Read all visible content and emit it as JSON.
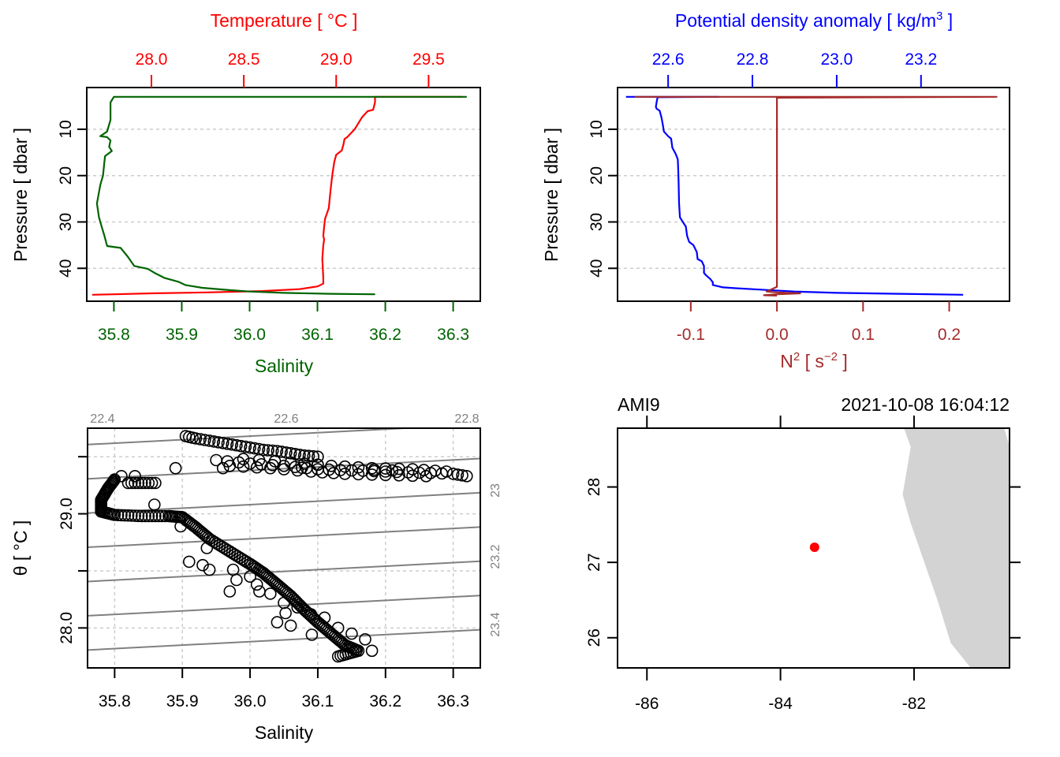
{
  "chart_data": [
    {
      "type": "line",
      "panel": "top-left",
      "title": "",
      "top_axis_label": "Temperature [ °C ]",
      "xlabel": "Salinity",
      "ylabel": "Pressure [ dbar ]",
      "colors": {
        "temperature": "#ff0000",
        "salinity": "#006400",
        "grid": "#cccccc"
      },
      "salinity_ticks": [
        "35.8",
        "35.9",
        "36.0",
        "36.1",
        "36.2",
        "36.3"
      ],
      "salinity_tick_values": [
        35.8,
        35.9,
        36.0,
        36.1,
        36.2,
        36.3
      ],
      "salinity_lim": [
        35.76,
        36.34
      ],
      "temperature_ticks": [
        "28.0",
        "28.5",
        "29.0",
        "29.5"
      ],
      "temperature_tick_values": [
        28.0,
        28.5,
        29.0,
        29.5
      ],
      "temperature_lim": [
        27.65,
        29.78
      ],
      "pressure_ticks": [
        "10",
        "20",
        "30",
        "40"
      ],
      "pressure_tick_values": [
        10,
        20,
        30,
        40
      ],
      "pressure_lim": [
        47.1,
        1.0
      ],
      "grid": true,
      "series": [
        {
          "name": "Salinity",
          "axis": "bottom",
          "points": [
            [
              36.32,
              3.0
            ],
            [
              35.8,
              3.0
            ],
            [
              35.795,
              4.2
            ],
            [
              35.795,
              8.0
            ],
            [
              35.79,
              10.5
            ],
            [
              35.78,
              11.5
            ],
            [
              35.79,
              11.7
            ],
            [
              35.795,
              12.4
            ],
            [
              35.793,
              13.8
            ],
            [
              35.797,
              14.7
            ],
            [
              35.787,
              15.8
            ],
            [
              35.786,
              17.0
            ],
            [
              35.784,
              20.0
            ],
            [
              35.78,
              22.0
            ],
            [
              35.775,
              26.0
            ],
            [
              35.778,
              29.0
            ],
            [
              35.782,
              31.0
            ],
            [
              35.786,
              33.0
            ],
            [
              35.79,
              35.2
            ],
            [
              35.81,
              35.6
            ],
            [
              35.82,
              37.4
            ],
            [
              35.83,
              39.5
            ],
            [
              35.85,
              40.1
            ],
            [
              35.86,
              41.0
            ],
            [
              35.875,
              42.1
            ],
            [
              35.895,
              42.9
            ],
            [
              35.905,
              43.6
            ],
            [
              35.93,
              44.2
            ],
            [
              35.97,
              44.7
            ],
            [
              36.0,
              45.0
            ],
            [
              36.05,
              45.3
            ],
            [
              36.12,
              45.5
            ],
            [
              36.185,
              45.6
            ]
          ]
        },
        {
          "name": "Temperature",
          "axis": "top",
          "points": [
            [
              29.68,
              3.0
            ],
            [
              29.21,
              3.0
            ],
            [
              29.21,
              4.2
            ],
            [
              29.2,
              5.8
            ],
            [
              29.17,
              6.1
            ],
            [
              29.14,
              7.4
            ],
            [
              29.1,
              10.0
            ],
            [
              29.06,
              11.7
            ],
            [
              29.045,
              12.1
            ],
            [
              29.04,
              13.2
            ],
            [
              29.03,
              14.6
            ],
            [
              29.0,
              15.5
            ],
            [
              28.99,
              17.0
            ],
            [
              28.98,
              19.5
            ],
            [
              28.97,
              23.0
            ],
            [
              28.96,
              27.0
            ],
            [
              28.94,
              29.3
            ],
            [
              28.935,
              31.0
            ],
            [
              28.93,
              33.0
            ],
            [
              28.935,
              33.8
            ],
            [
              28.93,
              35.0
            ],
            [
              28.925,
              38.0
            ],
            [
              28.93,
              42.0
            ],
            [
              28.93,
              43.3
            ],
            [
              28.9,
              43.9
            ],
            [
              28.8,
              44.5
            ],
            [
              28.6,
              44.9
            ],
            [
              28.3,
              45.2
            ],
            [
              28.0,
              45.4
            ],
            [
              27.8,
              45.6
            ],
            [
              27.68,
              45.7
            ]
          ]
        }
      ]
    },
    {
      "type": "line",
      "panel": "top-right",
      "top_axis_label": "Potential density anomaly [ kg/m³ ]",
      "top_axis_label_main": "Potential density anomaly [ kg/m",
      "top_axis_label_sup": "3",
      "top_axis_label_end": " ]",
      "xlabel": "N² [ s⁻² ]",
      "xlabel_main": "N",
      "xlabel_sup1": "2",
      "xlabel_mid": " [ s",
      "xlabel_sup2": "−2",
      "xlabel_end": " ]",
      "ylabel": "Pressure [ dbar ]",
      "colors": {
        "density": "#0000ff",
        "n2": "#a52a2a",
        "grid": "#cccccc"
      },
      "density_ticks": [
        "22.6",
        "22.8",
        "23.0",
        "23.2"
      ],
      "density_tick_values": [
        22.6,
        22.8,
        23.0,
        23.2
      ],
      "density_lim": [
        22.48,
        23.41
      ],
      "n2_ticks": [
        "-0.1",
        "0.0",
        "0.1",
        "0.2"
      ],
      "n2_tick_values": [
        -0.1,
        0.0,
        0.1,
        0.2
      ],
      "n2_lim": [
        -0.185,
        0.27
      ],
      "pressure_ticks": [
        "10",
        "20",
        "30",
        "40"
      ],
      "pressure_tick_values": [
        10,
        20,
        30,
        40
      ],
      "pressure_lim": [
        47.1,
        1.0
      ],
      "grid": true,
      "series": [
        {
          "name": "Potential density anomaly",
          "axis": "top",
          "points": [
            [
              22.5,
              3.0
            ],
            [
              22.72,
              3.0
            ],
            [
              22.575,
              3.1
            ],
            [
              22.573,
              4.0
            ],
            [
              22.571,
              5.2
            ],
            [
              22.573,
              5.6
            ],
            [
              22.58,
              6.0
            ],
            [
              22.584,
              7.4
            ],
            [
              22.587,
              8.8
            ],
            [
              22.59,
              10.5
            ],
            [
              22.6,
              11.5
            ],
            [
              22.607,
              12.0
            ],
            [
              22.61,
              14.0
            ],
            [
              22.618,
              15.3
            ],
            [
              22.623,
              16.5
            ],
            [
              22.624,
              19.0
            ],
            [
              22.625,
              22.0
            ],
            [
              22.626,
              26.0
            ],
            [
              22.628,
              29.0
            ],
            [
              22.635,
              30.0
            ],
            [
              22.642,
              31.0
            ],
            [
              22.645,
              33.0
            ],
            [
              22.65,
              34.3
            ],
            [
              22.66,
              35.0
            ],
            [
              22.668,
              36.5
            ],
            [
              22.67,
              38.0
            ],
            [
              22.68,
              38.5
            ],
            [
              22.685,
              39.5
            ],
            [
              22.685,
              41.0
            ],
            [
              22.69,
              41.5
            ],
            [
              22.7,
              42.3
            ],
            [
              22.706,
              43.0
            ],
            [
              22.706,
              43.6
            ],
            [
              22.73,
              44.1
            ],
            [
              22.76,
              44.3
            ],
            [
              22.82,
              44.6
            ],
            [
              22.9,
              45.0
            ],
            [
              23.0,
              45.3
            ],
            [
              23.15,
              45.5
            ],
            [
              23.3,
              45.7
            ]
          ]
        },
        {
          "name": "N²",
          "axis": "bottom",
          "points": [
            [
              -0.165,
              3.0
            ],
            [
              0.255,
              3.0
            ],
            [
              0.0,
              3.2
            ],
            [
              0.0,
              44.0
            ],
            [
              -0.012,
              45.0
            ],
            [
              0.0,
              45.2
            ],
            [
              0.027,
              45.4
            ],
            [
              0.0,
              45.6
            ],
            [
              -0.015,
              45.8
            ],
            [
              0.0,
              45.9
            ]
          ]
        }
      ]
    },
    {
      "type": "scatter",
      "panel": "bottom-left",
      "xlabel": "Salinity",
      "ylabel": "θ [ °C ]",
      "x_ticks": [
        "35.8",
        "35.9",
        "36.0",
        "36.1",
        "36.2",
        "36.3"
      ],
      "x_tick_values": [
        35.8,
        35.9,
        36.0,
        36.1,
        36.2,
        36.3
      ],
      "xlim": [
        35.76,
        36.34
      ],
      "y_ticks": [
        "28.0",
        "29.0"
      ],
      "y_tick_values": [
        28.0,
        29.0
      ],
      "y_minor_ticks": [
        28.5,
        29.5
      ],
      "ylim": [
        27.65,
        29.75
      ],
      "grid": true,
      "isopycnal_color": "#808080",
      "isopycnal_top_labels": [
        "22.4",
        "22.6",
        "22.8"
      ],
      "isopycnal_right_labels": [
        "23",
        "23.2",
        "23.4"
      ],
      "isopycnals": [
        22.4,
        22.6,
        22.8,
        23.0,
        23.2,
        23.4,
        23.6
      ],
      "isopycnal_slope_degC_per_psu": 0.306,
      "isopycnal_anchor": {
        "sigma": 22.6,
        "S": 36.0,
        "theta": 29.38
      },
      "sigma_step_degC": 0.3,
      "point_groups": [
        {
          "name": "surface-arm",
          "points": [
            [
              35.905,
              29.68
            ],
            [
              35.92,
              29.66
            ],
            [
              35.94,
              29.64
            ],
            [
              35.96,
              29.62
            ],
            [
              35.98,
              29.6
            ],
            [
              36.0,
              29.58
            ],
            [
              36.02,
              29.56
            ],
            [
              36.04,
              29.55
            ],
            [
              36.06,
              29.53
            ],
            [
              36.08,
              29.51
            ],
            [
              36.1,
              29.5
            ]
          ]
        },
        {
          "name": "upper-dense",
          "points": [
            [
              35.95,
              29.47
            ],
            [
              36.0,
              29.44
            ],
            [
              36.05,
              29.42
            ],
            [
              36.1,
              29.39
            ],
            [
              36.15,
              29.38
            ],
            [
              36.2,
              29.37
            ],
            [
              36.25,
              29.36
            ],
            [
              36.3,
              29.35
            ],
            [
              36.32,
              29.33
            ],
            [
              35.99,
              29.48
            ],
            [
              36.06,
              29.45
            ],
            [
              36.12,
              29.42
            ],
            [
              36.18,
              29.4
            ],
            [
              36.24,
              29.39
            ],
            [
              36.29,
              29.37
            ],
            [
              35.97,
              29.42
            ],
            [
              36.03,
              29.4
            ],
            [
              36.09,
              29.37
            ],
            [
              36.14,
              29.35
            ],
            [
              36.2,
              29.34
            ],
            [
              36.26,
              29.33
            ]
          ]
        },
        {
          "name": "outliers",
          "points": [
            [
              35.89,
              29.4
            ],
            [
              35.96,
              29.4
            ],
            [
              35.83,
              29.33
            ],
            [
              35.81,
              29.33
            ]
          ]
        },
        {
          "name": "loop",
          "points": [
            [
              35.8,
              29.3
            ],
            [
              35.79,
              29.22
            ],
            [
              35.78,
              29.12
            ],
            [
              35.78,
              29.02
            ],
            [
              35.8,
              28.99
            ],
            [
              35.84,
              28.98
            ],
            [
              35.88,
              28.98
            ],
            [
              35.9,
              28.97
            ],
            [
              35.92,
              28.88
            ],
            [
              35.94,
              28.78
            ],
            [
              35.97,
              28.67
            ],
            [
              36.0,
              28.56
            ],
            [
              36.02,
              28.48
            ],
            [
              36.04,
              28.38
            ],
            [
              36.06,
              28.28
            ],
            [
              36.08,
              28.16
            ],
            [
              36.1,
              28.05
            ],
            [
              36.12,
              27.95
            ],
            [
              36.14,
              27.85
            ],
            [
              36.16,
              27.8
            ],
            [
              36.13,
              27.75
            ],
            [
              35.82,
              29.27
            ],
            [
              35.86,
              29.27
            ]
          ]
        },
        {
          "name": "lower-scatter",
          "points": [
            [
              35.91,
              28.58
            ],
            [
              35.93,
              28.55
            ],
            [
              35.94,
              28.51
            ],
            [
              35.98,
              28.42
            ],
            [
              36.01,
              28.38
            ],
            [
              36.03,
              28.3
            ],
            [
              36.05,
              28.22
            ],
            [
              36.07,
              28.18
            ],
            [
              36.09,
              28.12
            ],
            [
              36.11,
              28.09
            ],
            [
              36.13,
              28.0
            ],
            [
              36.15,
              27.95
            ],
            [
              36.17,
              27.9
            ],
            [
              36.18,
              27.8
            ],
            [
              36.04,
              28.05
            ],
            [
              36.06,
              28.02
            ],
            [
              35.97,
              28.32
            ],
            [
              36.0,
              28.45
            ]
          ]
        }
      ]
    },
    {
      "type": "scatter",
      "panel": "bottom-right",
      "title_left": "AMI9",
      "title_right": "2021-10-08 16:04:12",
      "x_ticks": [
        "-86",
        "-84",
        "-82"
      ],
      "x_tick_values": [
        -86,
        -84,
        -82
      ],
      "xlim": [
        -86.44,
        -80.57
      ],
      "y_ticks": [
        "26",
        "27",
        "28"
      ],
      "y_tick_values": [
        26,
        27,
        28
      ],
      "ylim": [
        25.6,
        28.78
      ],
      "land_color": "#d3d3d3",
      "station_color": "#ff0000",
      "station": {
        "lon": -83.49,
        "lat": 27.2
      },
      "coastline": [
        [
          -82.15,
          28.78
        ],
        [
          -82.05,
          28.53
        ],
        [
          -82.17,
          27.9
        ],
        [
          -82.05,
          27.52
        ],
        [
          -81.65,
          26.5
        ],
        [
          -81.45,
          25.93
        ],
        [
          -81.15,
          25.6
        ],
        [
          -80.57,
          25.6
        ],
        [
          -80.57,
          28.54
        ],
        [
          -80.65,
          28.78
        ]
      ]
    }
  ]
}
